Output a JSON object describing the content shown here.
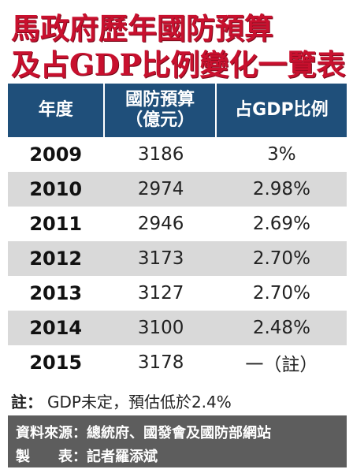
{
  "title": {
    "line1": "馬政府歷年國防預算",
    "line2": "及占GDP比例變化一覽表"
  },
  "table": {
    "headers": {
      "year": "年度",
      "budget": "國防預算\n（億元）",
      "ratio": "占GDP比例"
    },
    "rows": [
      {
        "year": "2009",
        "budget": "3186",
        "ratio": "3%"
      },
      {
        "year": "2010",
        "budget": "2974",
        "ratio": "2.98%"
      },
      {
        "year": "2011",
        "budget": "2946",
        "ratio": "2.69%"
      },
      {
        "year": "2012",
        "budget": "3173",
        "ratio": "2.70%"
      },
      {
        "year": "2013",
        "budget": "3127",
        "ratio": "2.70%"
      },
      {
        "year": "2014",
        "budget": "3100",
        "ratio": "2.48%"
      },
      {
        "year": "2015",
        "budget": "3178",
        "ratio": "一（註）"
      }
    ]
  },
  "note": {
    "label": "註：",
    "text": "GDP未定，預估低於2.4%"
  },
  "footer": {
    "source_label": "資料來源",
    "source_value": "：總統府、國發會及國防部網站",
    "maker_label": "製　　表",
    "maker_value": "：記者羅添斌"
  },
  "colors": {
    "title_red": "#c8102e",
    "header_blue": "#1f4f7a",
    "row_shade": "#d9d9d9",
    "footer_gray": "#5d5d5d"
  }
}
